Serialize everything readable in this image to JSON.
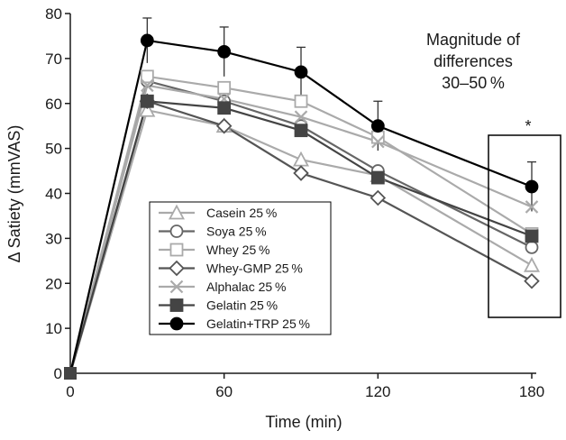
{
  "chart_data": {
    "type": "line",
    "xlabel": "Time (min)",
    "ylabel": "Δ Satiety (mmVAS)",
    "xlim": [
      0,
      180
    ],
    "ylim": [
      0,
      80
    ],
    "xticks": [
      0,
      60,
      120,
      180
    ],
    "yticks": [
      0,
      10,
      20,
      30,
      40,
      50,
      60,
      70,
      80
    ],
    "grid": false,
    "legend_position": "lower-center-left",
    "x": [
      0,
      30,
      60,
      90,
      120,
      180
    ],
    "series": [
      {
        "name": "Casein 25 %",
        "values": [
          0,
          58.5,
          55,
          47.5,
          44,
          24
        ],
        "marker": "triangle",
        "color": "#aaaaaa",
        "fill": "open"
      },
      {
        "name": "Soya 25 %",
        "values": [
          0,
          65,
          60.5,
          55,
          45,
          28
        ],
        "marker": "circle",
        "color": "#666666",
        "fill": "open"
      },
      {
        "name": "Whey 25 %",
        "values": [
          0,
          66,
          63.5,
          60.5,
          52.5,
          31
        ],
        "marker": "square",
        "color": "#aaaaaa",
        "fill": "open"
      },
      {
        "name": "Whey-GMP 25 %",
        "values": [
          0,
          60.5,
          55,
          44.5,
          39,
          20.5
        ],
        "marker": "diamond",
        "color": "#555555",
        "fill": "open"
      },
      {
        "name": "Alphalac 25 %",
        "values": [
          0,
          64,
          61,
          57,
          51.5,
          37
        ],
        "marker": "x",
        "color": "#aaaaaa",
        "fill": "open"
      },
      {
        "name": "Gelatin 25 %",
        "values": [
          0,
          60.5,
          59,
          54,
          43.5,
          30.5
        ],
        "marker": "square",
        "color": "#444444",
        "fill": "filled"
      },
      {
        "name": "Gelatin+TRP 25 %",
        "values": [
          0,
          74,
          71.5,
          67,
          55,
          41.5
        ],
        "marker": "circle",
        "color": "#000000",
        "fill": "filled"
      }
    ],
    "error_bars": {
      "series": "Gelatin+TRP 25 %",
      "x": [
        30,
        60,
        90,
        120,
        180
      ],
      "upper": [
        79,
        77,
        72.5,
        60.5,
        47
      ]
    },
    "annotations": [
      {
        "text": "Magnitude of",
        "line": 1
      },
      {
        "text": "differences",
        "line": 2
      },
      {
        "text": "30–50 %",
        "line": 3
      }
    ],
    "significance_marker": "*",
    "highlight_box_x": 180
  }
}
